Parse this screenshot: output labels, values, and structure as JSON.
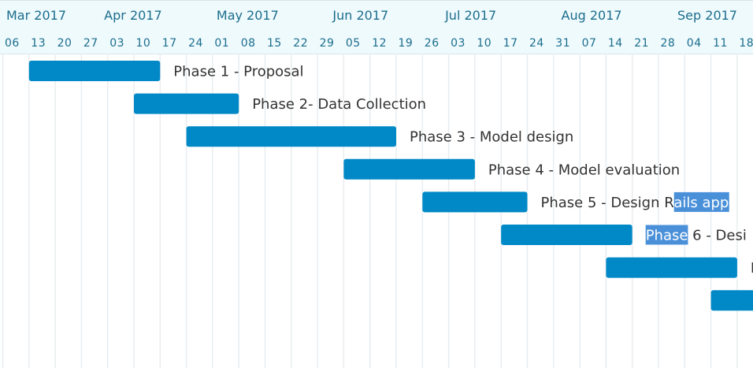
{
  "colors": {
    "bar": "#0189c7",
    "header_bg": "#effafd",
    "header_text": "#1b6d8c",
    "grid": "#e8edf0",
    "label": "#333333",
    "highlight": "#4a90d9",
    "highlight_text": "#ffffff"
  },
  "chart_data": {
    "type": "gantt",
    "title": "",
    "x_axis": {
      "start": "2017-03-06",
      "unit": "week",
      "month_labels": [
        {
          "label": "Mar 2017",
          "date": "2017-03-01"
        },
        {
          "label": "Apr 2017",
          "date": "2017-04-01"
        },
        {
          "label": "May 2017",
          "date": "2017-05-01"
        },
        {
          "label": "Jun 2017",
          "date": "2017-06-01"
        },
        {
          "label": "Jul 2017",
          "date": "2017-07-01"
        },
        {
          "label": "Aug 2017",
          "date": "2017-08-01"
        },
        {
          "label": "Sep 2017",
          "date": "2017-09-01"
        }
      ],
      "week_labels": [
        {
          "label": "06",
          "date": "2017-03-06"
        },
        {
          "label": "13",
          "date": "2017-03-13"
        },
        {
          "label": "20",
          "date": "2017-03-20"
        },
        {
          "label": "27",
          "date": "2017-03-27"
        },
        {
          "label": "03",
          "date": "2017-04-03"
        },
        {
          "label": "10",
          "date": "2017-04-10"
        },
        {
          "label": "17",
          "date": "2017-04-17"
        },
        {
          "label": "24",
          "date": "2017-04-24"
        },
        {
          "label": "01",
          "date": "2017-05-01"
        },
        {
          "label": "08",
          "date": "2017-05-08"
        },
        {
          "label": "15",
          "date": "2017-05-15"
        },
        {
          "label": "22",
          "date": "2017-05-22"
        },
        {
          "label": "29",
          "date": "2017-05-29"
        },
        {
          "label": "05",
          "date": "2017-06-05"
        },
        {
          "label": "12",
          "date": "2017-06-12"
        },
        {
          "label": "19",
          "date": "2017-06-19"
        },
        {
          "label": "26",
          "date": "2017-06-26"
        },
        {
          "label": "03",
          "date": "2017-07-03"
        },
        {
          "label": "10",
          "date": "2017-07-10"
        },
        {
          "label": "17",
          "date": "2017-07-17"
        },
        {
          "label": "24",
          "date": "2017-07-24"
        },
        {
          "label": "31",
          "date": "2017-07-31"
        },
        {
          "label": "07",
          "date": "2017-08-07"
        },
        {
          "label": "14",
          "date": "2017-08-14"
        },
        {
          "label": "21",
          "date": "2017-08-21"
        },
        {
          "label": "28",
          "date": "2017-08-28"
        },
        {
          "label": "04",
          "date": "2017-09-04"
        },
        {
          "label": "11",
          "date": "2017-09-11"
        },
        {
          "label": "18",
          "date": "2017-09-18"
        }
      ]
    },
    "tasks": [
      {
        "name": "Phase 1 - Proposal",
        "start": "2017-03-13",
        "end": "2017-04-17"
      },
      {
        "name": "Phase 2- Data Collection",
        "start": "2017-04-10",
        "end": "2017-05-08"
      },
      {
        "name": "Phase 3 - Model design",
        "start": "2017-04-24",
        "end": "2017-06-19"
      },
      {
        "name": "Phase 4 - Model evaluation",
        "start": "2017-06-05",
        "end": "2017-07-10"
      },
      {
        "name": "Phase 5 - Design Rails app",
        "start": "2017-06-26",
        "end": "2017-07-24",
        "highlight": "ails app"
      },
      {
        "name": "Phase 6 - Desi",
        "start": "2017-07-17",
        "end": "2017-08-21",
        "highlight": "Phase"
      },
      {
        "name": "P",
        "start": "2017-08-14",
        "end": "2017-09-18"
      },
      {
        "name": "",
        "start": "2017-09-11",
        "end": "2017-10-02"
      }
    ]
  }
}
